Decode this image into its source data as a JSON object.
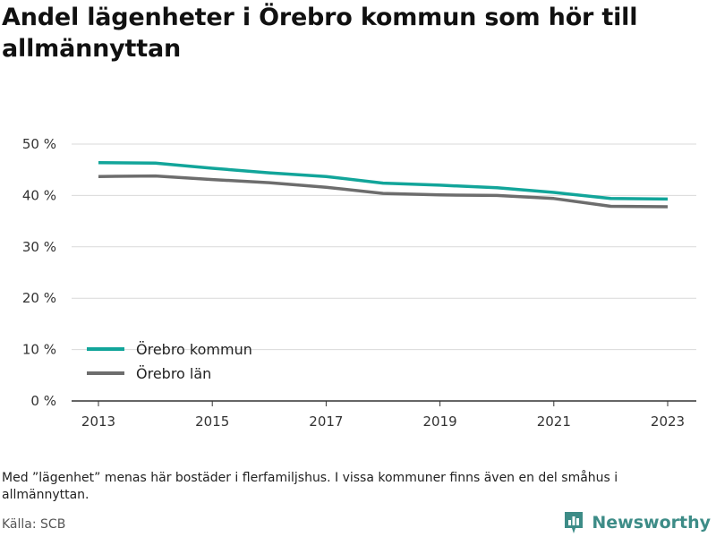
{
  "title": "Andel lägenheter i Örebro kommun som hör till allmännyttan",
  "note": "Med ”lägenhet” menas här bostäder i flerfamiljshus. I vissa kommuner finns även en del småhus i allmännyttan.",
  "source": "Källa: SCB",
  "brand": {
    "name": "Newsworthy",
    "logo_icon": "bar-chart-logo-icon",
    "color": "#3d8c87"
  },
  "chart_data": {
    "type": "line",
    "x": [
      2013,
      2014,
      2015,
      2016,
      2017,
      2018,
      2019,
      2020,
      2021,
      2022,
      2023
    ],
    "x_ticks": [
      "2013",
      "2015",
      "2017",
      "2019",
      "2021",
      "2023"
    ],
    "y_ticks": [
      "0 %",
      "10 %",
      "20 %",
      "30 %",
      "40 %",
      "50 %"
    ],
    "ylim": [
      0,
      50
    ],
    "grid": true,
    "legend_position": "bottom-left",
    "series": [
      {
        "name": "Örebro kommun",
        "color": "#12a59a",
        "values": [
          46.4,
          46.3,
          45.3,
          44.4,
          43.7,
          42.4,
          42.0,
          41.5,
          40.6,
          39.4,
          39.3
        ]
      },
      {
        "name": "Örebro län",
        "color": "#6d6d6d",
        "values": [
          43.7,
          43.8,
          43.1,
          42.5,
          41.6,
          40.4,
          40.1,
          40.0,
          39.4,
          37.9,
          37.8
        ]
      }
    ]
  }
}
